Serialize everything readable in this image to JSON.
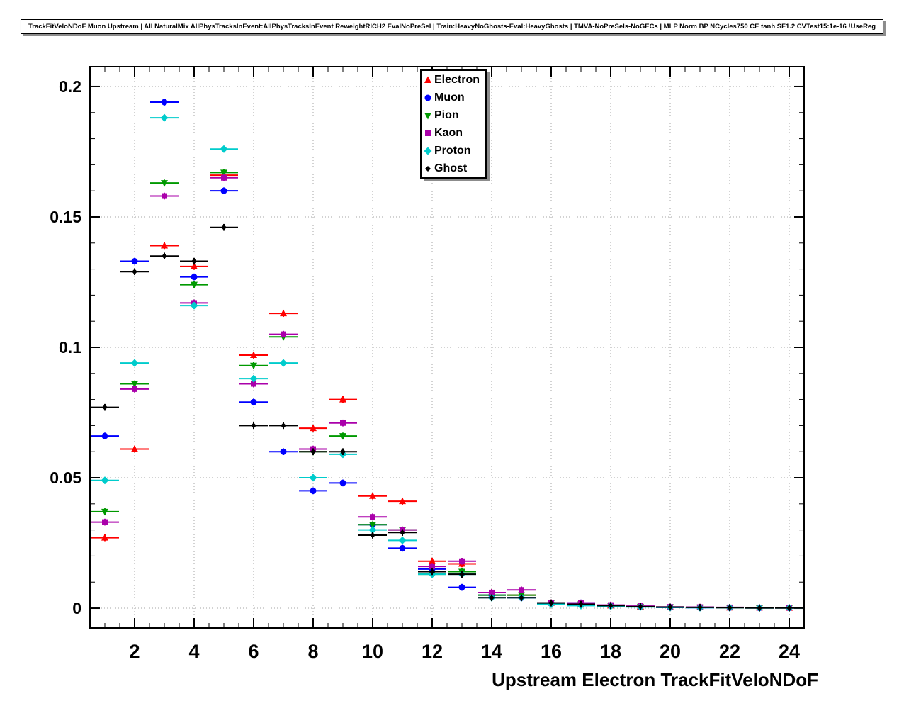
{
  "title": "TrackFitVeloNDoF Muon Upstream | All NaturalMix AllPhysTracksInEvent:AllPhysTracksInEvent ReweightRICH2 EvalNoPreSel | Train:HeavyNoGhosts-Eval:HeavyGhosts | TMVA-NoPreSels-NoGECs | MLP Norm BP NCycles750 CE tanh SF1.2 CVTest15:1e-16 !UseReg",
  "chart_data": {
    "type": "scatter",
    "title": "TrackFitVeloNDoF Muon Upstream",
    "xlabel": "Upstream Electron TrackFitVeloNDoF",
    "ylabel": "",
    "xlim": [
      0.5,
      24.5
    ],
    "ylim": [
      -0.0076,
      0.2076
    ],
    "xticks": [
      2,
      4,
      6,
      8,
      10,
      12,
      14,
      16,
      18,
      20,
      22,
      24
    ],
    "yticks": [
      0,
      0.05,
      0.1,
      0.15,
      0.2
    ],
    "ytick_labels": [
      "0",
      "0.05",
      "0.1",
      "0.15",
      "0.2"
    ],
    "grid": true,
    "legend_position": "top-center",
    "bin_half_width": 0.5,
    "point_error": 0.0013,
    "x": [
      1,
      2,
      3,
      4,
      5,
      6,
      7,
      8,
      9,
      10,
      11,
      12,
      13,
      14,
      15,
      16,
      17,
      18,
      19,
      20,
      21,
      22,
      23,
      24
    ],
    "series": [
      {
        "name": "Electron",
        "color": "#ff0000",
        "marker": "triangle-up",
        "values": [
          0.027,
          0.061,
          0.139,
          0.131,
          0.166,
          0.097,
          0.113,
          0.069,
          0.08,
          0.043,
          0.041,
          0.018,
          0.017,
          0.006,
          0.005,
          0.002,
          0.0015,
          0.001,
          0.0006,
          0.0004,
          0.0003,
          0.0002,
          0.0002,
          0.0001
        ]
      },
      {
        "name": "Muon",
        "color": "#0000ff",
        "marker": "circle",
        "values": [
          0.066,
          0.133,
          0.194,
          0.127,
          0.16,
          0.079,
          0.06,
          0.045,
          0.048,
          0.032,
          0.023,
          0.015,
          0.008,
          0.005,
          0.004,
          0.002,
          0.002,
          0.001,
          0.0006,
          0.0003,
          0.0002,
          0.0002,
          0.0001,
          0.0001
        ]
      },
      {
        "name": "Pion",
        "color": "#009900",
        "marker": "triangle-down",
        "values": [
          0.037,
          0.086,
          0.163,
          0.124,
          0.167,
          0.093,
          0.104,
          0.06,
          0.066,
          0.032,
          0.03,
          0.013,
          0.014,
          0.005,
          0.005,
          0.002,
          0.0015,
          0.001,
          0.0006,
          0.0004,
          0.0003,
          0.0002,
          0.0001,
          0.0001
        ]
      },
      {
        "name": "Kaon",
        "color": "#aa00aa",
        "marker": "square",
        "values": [
          0.033,
          0.084,
          0.158,
          0.117,
          0.165,
          0.086,
          0.105,
          0.061,
          0.071,
          0.035,
          0.03,
          0.016,
          0.018,
          0.006,
          0.007,
          0.002,
          0.002,
          0.0012,
          0.0008,
          0.0005,
          0.0004,
          0.0003,
          0.0002,
          0.0002
        ]
      },
      {
        "name": "Proton",
        "color": "#00cccc",
        "marker": "diamond",
        "values": [
          0.049,
          0.094,
          0.188,
          0.116,
          0.176,
          0.088,
          0.094,
          0.05,
          0.059,
          0.03,
          0.026,
          0.013,
          0.013,
          0.004,
          0.004,
          0.0015,
          0.001,
          0.0008,
          0.0005,
          0.0003,
          0.0002,
          0.0002,
          0.0001,
          0.0001
        ]
      },
      {
        "name": "Ghost",
        "color": "#000000",
        "marker": "diamond-small",
        "values": [
          0.077,
          0.129,
          0.135,
          0.133,
          0.146,
          0.07,
          0.07,
          0.06,
          0.06,
          0.028,
          0.029,
          0.014,
          0.013,
          0.004,
          0.004,
          0.002,
          0.0015,
          0.001,
          0.0006,
          0.0004,
          0.0003,
          0.0002,
          0.0001,
          0.0001
        ]
      }
    ]
  }
}
